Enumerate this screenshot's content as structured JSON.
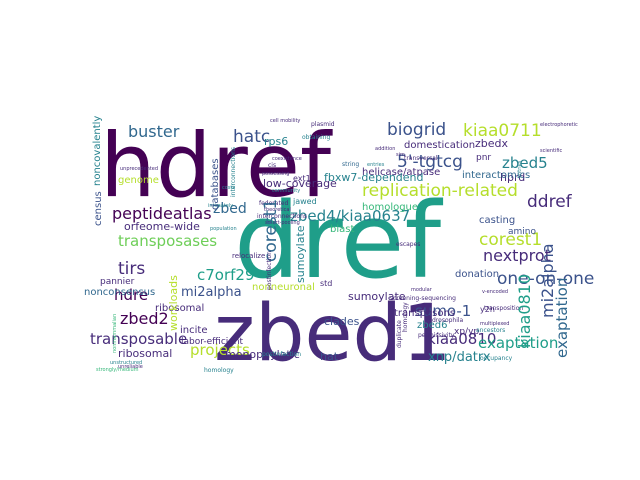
{
  "word_cloud": {
    "colors": {
      "purple": "#440154",
      "indigo": "#472c7a",
      "blue": "#3b528b",
      "steel": "#31688e",
      "teal": "#26828e",
      "green": "#1f9e89",
      "mint": "#35b779",
      "lime": "#6ece58",
      "yellowgreen": "#b5de2b",
      "yellow": "#fde725"
    },
    "words": [
      {
        "text": "dref",
        "color": "green"
      },
      {
        "text": "hdref",
        "color": "purple"
      },
      {
        "text": "zbed1",
        "color": "indigo"
      },
      {
        "text": "replication-related",
        "color": "yellowgreen"
      },
      {
        "text": "zbed4/kiaa0637",
        "color": "teal"
      },
      {
        "text": "biogrid",
        "color": "blue"
      },
      {
        "text": "kiaa0711",
        "color": "yellowgreen"
      },
      {
        "text": "buster",
        "color": "steel"
      },
      {
        "text": "hatc",
        "color": "blue"
      },
      {
        "text": "5'-tgtcg",
        "color": "blue"
      },
      {
        "text": "zbed5",
        "color": "teal"
      },
      {
        "text": "ddref",
        "color": "indigo"
      },
      {
        "text": "peptideatlas",
        "color": "purple"
      },
      {
        "text": "zbed",
        "color": "steel"
      },
      {
        "text": "transposases",
        "color": "lime"
      },
      {
        "text": "corest1",
        "color": "steel"
      },
      {
        "text": "nextprot",
        "color": "yellowgreen"
      },
      {
        "text": "one-on-one",
        "color": "indigo"
      },
      {
        "text": "tirs",
        "color": "blue"
      },
      {
        "text": "c7orf29",
        "color": "indigo"
      },
      {
        "text": "hdre",
        "color": "green"
      },
      {
        "text": "mi2alpha",
        "color": "blue"
      },
      {
        "text": "zbed2",
        "color": "purple"
      },
      {
        "text": "sumo-1",
        "color": "blue"
      },
      {
        "text": "transposable",
        "color": "purple"
      },
      {
        "text": "projects",
        "color": "blue"
      },
      {
        "text": "kiaa0810",
        "color": "green"
      },
      {
        "text": "exaptation",
        "color": "steel"
      },
      {
        "text": "xnp/datrx",
        "color": "indigo"
      },
      {
        "text": "hat",
        "color": "yellowgreen"
      },
      {
        "text": "zbedx",
        "color": "indigo"
      },
      {
        "text": "hprd",
        "color": "green"
      },
      {
        "text": "interactomics",
        "color": "teal"
      },
      {
        "text": "domestication",
        "color": "blue"
      },
      {
        "text": "helicase/atpase",
        "color": "indigo"
      },
      {
        "text": "homologue",
        "color": "indigo"
      },
      {
        "text": "casting",
        "color": "steel"
      },
      {
        "text": "blast",
        "color": "indigo"
      },
      {
        "text": "low-coverage",
        "color": "indigo"
      },
      {
        "text": "element-derived",
        "color": "mint"
      },
      {
        "text": "fbxw7-dependend",
        "color": "blue"
      },
      {
        "text": "orfeome-wide",
        "color": "mint"
      },
      {
        "text": "studio",
        "color": "indigo"
      },
      {
        "text": "rps6",
        "color": "teal"
      },
      {
        "text": "rps",
        "color": "teal"
      },
      {
        "text": "chimpanzee",
        "color": "indigo"
      },
      {
        "text": "workloads",
        "color": "yellowgreen"
      },
      {
        "text": "databases",
        "color": "blue"
      },
      {
        "text": "census",
        "color": "blue"
      },
      {
        "text": "noncovalently",
        "color": "teal"
      },
      {
        "text": "nonconsensus",
        "color": "steel"
      },
      {
        "text": "pannier",
        "color": "indigo"
      },
      {
        "text": "ribosomal",
        "color": "indigo"
      },
      {
        "text": "monophyletic",
        "color": "indigo"
      },
      {
        "text": "incite",
        "color": "indigo"
      },
      {
        "text": "labor-efficient",
        "color": "indigo"
      },
      {
        "text": "leverage",
        "color": "indigo"
      },
      {
        "text": "sumoylate",
        "color": "teal"
      },
      {
        "text": "clades",
        "color": "indigo"
      },
      {
        "text": "transposons",
        "color": "blue"
      },
      {
        "text": "zbed6",
        "color": "indigo"
      },
      {
        "text": "donation",
        "color": "teal"
      },
      {
        "text": "xp/yp",
        "color": "blue"
      },
      {
        "text": "y2h",
        "color": "indigo"
      },
      {
        "text": "amino",
        "color": "indigo"
      },
      {
        "text": "genome",
        "color": "blue"
      },
      {
        "text": "std",
        "color": "yellowgreen"
      },
      {
        "text": "relocalize",
        "color": "indigo"
      },
      {
        "text": "nonneuronal",
        "color": "indigo"
      },
      {
        "text": "pnr",
        "color": "yellowgreen"
      },
      {
        "text": "ext1",
        "color": "indigo"
      },
      {
        "text": "jawed",
        "color": "indigo"
      },
      {
        "text": "screening-sequencing",
        "color": "teal"
      },
      {
        "text": "permissivity",
        "color": "indigo"
      },
      {
        "text": "plasmid",
        "color": "indigo"
      },
      {
        "text": "obtaining",
        "color": "indigo"
      },
      {
        "text": "transversal",
        "color": "teal"
      },
      {
        "text": "string",
        "color": "indigo"
      },
      {
        "text": "cis",
        "color": "steel"
      },
      {
        "text": "ppi",
        "color": "indigo"
      },
      {
        "text": "interconnections",
        "color": "teal"
      },
      {
        "text": "federated",
        "color": "indigo"
      },
      {
        "text": "remodels",
        "color": "indigo"
      },
      {
        "text": "postinfection",
        "color": "indigo"
      },
      {
        "text": "transposition",
        "color": "teal"
      },
      {
        "text": "ancestors",
        "color": "indigo"
      },
      {
        "text": "occupancy",
        "color": "teal"
      },
      {
        "text": "drosophila",
        "color": "teal"
      },
      {
        "text": "kegg",
        "color": "indigo"
      },
      {
        "text": "homology",
        "color": "indigo"
      },
      {
        "text": "unstructured",
        "color": "teal"
      },
      {
        "text": "strongly/medium",
        "color": "teal"
      },
      {
        "text": "electrophoretic",
        "color": "mint"
      },
      {
        "text": "scientific",
        "color": "indigo"
      },
      {
        "text": "sim",
        "color": "indigo"
      },
      {
        "text": "unprecedented",
        "color": "indigo"
      },
      {
        "text": "escapes",
        "color": "indigo"
      },
      {
        "text": "v-encoded",
        "color": "indigo"
      },
      {
        "text": "multiplexed",
        "color": "indigo"
      },
      {
        "text": "theoretical",
        "color": "indigo"
      },
      {
        "text": "smart-pooling",
        "color": "indigo"
      },
      {
        "text": "costs",
        "color": "indigo"
      },
      {
        "text": "intimately",
        "color": "teal"
      },
      {
        "text": "population",
        "color": "teal"
      },
      {
        "text": "community",
        "color": "teal"
      },
      {
        "text": "coexistence",
        "color": "teal"
      },
      {
        "text": "possessing",
        "color": "indigo"
      },
      {
        "text": "cell mobility",
        "color": "indigo"
      },
      {
        "text": "unreliable",
        "color": "indigo"
      },
      {
        "text": "modular",
        "color": "indigo"
      },
      {
        "text": "basis",
        "color": "indigo"
      },
      {
        "text": "duplicate",
        "color": "indigo"
      },
      {
        "text": "nonmammalian",
        "color": "mint"
      },
      {
        "text": "entries",
        "color": "teal"
      },
      {
        "text": "addition",
        "color": "indigo"
      },
      {
        "text": "surveyed",
        "color": "teal"
      }
    ]
  }
}
